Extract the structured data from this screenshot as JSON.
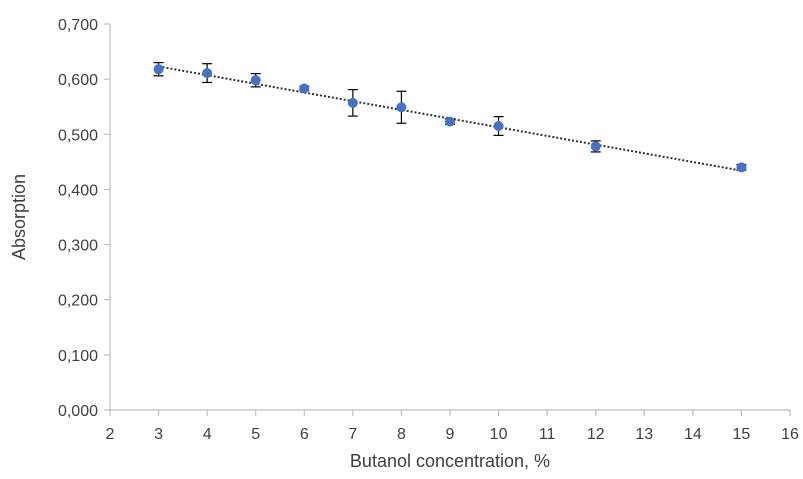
{
  "chart_data": {
    "type": "scatter",
    "title": "",
    "xlabel": "Butanol concentration, %",
    "ylabel": "Absorption",
    "xlim": [
      2,
      16
    ],
    "ylim": [
      0,
      0.7
    ],
    "x_ticks": [
      2,
      3,
      4,
      5,
      6,
      7,
      8,
      9,
      10,
      11,
      12,
      13,
      14,
      15,
      16
    ],
    "x_tick_labels": [
      "2",
      "3",
      "4",
      "5",
      "6",
      "7",
      "8",
      "9",
      "10",
      "11",
      "12",
      "13",
      "14",
      "15",
      "16"
    ],
    "y_ticks": [
      0,
      0.1,
      0.2,
      0.3,
      0.4,
      0.5,
      0.6,
      0.7
    ],
    "y_tick_labels": [
      "0,000",
      "0,100",
      "0,200",
      "0,300",
      "0,400",
      "0,500",
      "0,600",
      "0,700"
    ],
    "grid": false,
    "legend": "none",
    "series": [
      {
        "x": [
          3,
          4,
          5,
          6,
          7,
          8,
          9,
          10,
          12,
          15
        ],
        "y": [
          0.618,
          0.611,
          0.598,
          0.583,
          0.557,
          0.549,
          0.523,
          0.515,
          0.478,
          0.44
        ],
        "error": [
          0.012,
          0.017,
          0.012,
          0.004,
          0.024,
          0.029,
          0.005,
          0.017,
          0.01,
          0.005
        ],
        "color": "#4472C4"
      }
    ],
    "trendline": {
      "type": "linear",
      "x": [
        3,
        15
      ],
      "y": [
        0.623,
        0.434
      ],
      "style": "dotted",
      "color": "#303030"
    },
    "error_bar_color": "#000000",
    "axis_color": "#BFBFBF",
    "text_color": "#404040"
  }
}
